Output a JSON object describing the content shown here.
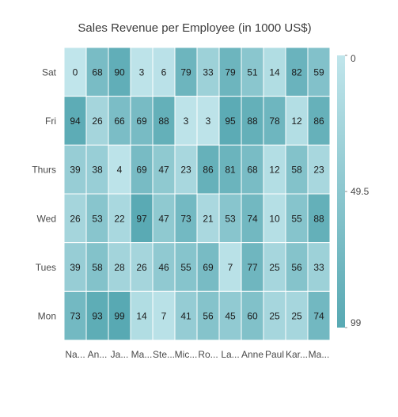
{
  "chart_data": {
    "type": "heatmap",
    "title": "Sales Revenue per Employee (in 1000 US$)",
    "x_categories": [
      "Na...",
      "An...",
      "Ja...",
      "Ma...",
      "Ste...",
      "Mic...",
      "Ro...",
      "La...",
      "Anne",
      "Paul",
      "Kar...",
      "Ma..."
    ],
    "y_categories": [
      "Sat",
      "Fri",
      "Thurs",
      "Wed",
      "Tues",
      "Mon"
    ],
    "values": [
      [
        0,
        68,
        90,
        3,
        6,
        79,
        33,
        79,
        51,
        14,
        82,
        59
      ],
      [
        94,
        26,
        66,
        69,
        88,
        3,
        3,
        95,
        88,
        78,
        12,
        86
      ],
      [
        39,
        38,
        4,
        69,
        47,
        23,
        86,
        81,
        68,
        12,
        58,
        23
      ],
      [
        26,
        53,
        22,
        97,
        47,
        73,
        21,
        53,
        74,
        10,
        55,
        88
      ],
      [
        39,
        58,
        28,
        26,
        46,
        55,
        69,
        7,
        77,
        25,
        56,
        33
      ],
      [
        73,
        93,
        99,
        14,
        7,
        41,
        56,
        45,
        60,
        25,
        25,
        74
      ]
    ],
    "color_scale": {
      "min": 0,
      "mid": 49.5,
      "max": 99,
      "min_label": "0",
      "mid_label": "49.5",
      "max_label": "99",
      "min_color": "#C0E5EB",
      "max_color": "#58A9B3",
      "legend_placement": "right"
    },
    "cell_border_color": "#ffffff",
    "label_color": "#1a1a1a",
    "axis_label_color": "#4a4a4a"
  }
}
